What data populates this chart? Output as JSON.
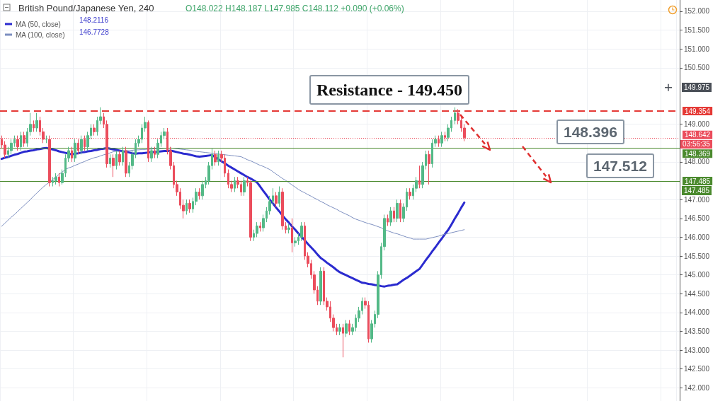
{
  "chart_data": {
    "type": "candlestick",
    "title": "British Pound/Japanese Yen, 240",
    "subtitle": "O148.022 H148.187 L147.985 C148.112 +0.090 (+0.06%)",
    "categories": [
      null,
      null,
      null,
      null,
      null,
      null,
      null,
      null,
      null,
      null,
      null,
      null,
      null,
      null,
      null,
      null,
      null,
      null,
      null,
      null,
      null,
      null,
      null,
      null,
      null,
      null,
      null,
      null,
      null,
      null,
      null,
      null,
      null,
      null,
      null,
      null,
      null,
      null,
      null,
      null,
      null,
      null,
      null,
      null,
      null,
      null,
      null,
      null,
      null,
      null,
      null,
      null,
      null,
      null,
      null,
      null,
      null,
      null,
      null,
      null,
      null,
      null,
      null,
      null,
      null,
      null,
      null,
      null,
      null,
      null,
      null,
      null,
      null,
      null,
      null,
      null,
      null,
      null,
      null,
      null,
      null,
      null,
      null,
      null,
      null,
      null,
      null,
      null,
      null,
      null,
      null,
      null,
      null,
      null,
      null,
      null,
      null,
      null,
      null,
      null,
      null,
      null,
      null,
      null,
      null,
      null,
      null,
      null,
      null,
      null,
      null,
      null,
      null,
      null,
      null,
      null,
      null,
      null,
      null,
      null,
      null,
      null,
      null,
      null,
      null,
      null,
      null,
      null,
      null,
      null,
      null,
      null,
      null,
      null,
      null,
      null,
      null,
      null,
      null,
      null,
      null,
      null,
      null,
      null,
      null,
      null,
      null,
      null,
      null,
      null,
      null,
      null,
      null,
      null,
      null,
      null,
      null,
      null,
      null,
      null,
      null,
      null,
      null,
      null,
      null,
      null,
      null,
      null,
      null,
      null,
      null,
      null,
      null,
      null,
      null,
      null,
      null,
      null,
      null,
      null,
      null,
      null,
      null,
      null,
      null,
      null,
      null,
      null,
      null,
      null,
      null,
      null,
      null,
      null,
      null,
      null,
      null,
      null,
      null,
      null,
      null,
      null,
      null,
      null,
      null,
      null,
      null,
      null,
      null,
      null,
      null,
      null,
      null
    ],
    "ohlc": [
      [
        148.6,
        148.7,
        148.35,
        148.45
      ],
      [
        148.45,
        148.55,
        148.1,
        148.2
      ],
      [
        148.2,
        148.4,
        148.1,
        148.3
      ],
      [
        148.3,
        148.6,
        148.2,
        148.5
      ],
      [
        148.5,
        148.7,
        148.4,
        148.6
      ],
      [
        148.6,
        148.7,
        148.3,
        148.4
      ],
      [
        148.4,
        148.8,
        148.3,
        148.7
      ],
      [
        148.7,
        148.8,
        148.4,
        148.5
      ],
      [
        148.5,
        148.9,
        148.4,
        148.8
      ],
      [
        148.8,
        149.3,
        148.7,
        149.0
      ],
      [
        149.0,
        149.1,
        148.8,
        148.9
      ],
      [
        148.9,
        149.3,
        148.8,
        149.1
      ],
      [
        149.1,
        149.2,
        148.7,
        148.8
      ],
      [
        148.8,
        148.9,
        148.5,
        148.6
      ],
      [
        148.6,
        148.7,
        148.5,
        148.6
      ],
      [
        148.6,
        148.7,
        147.35,
        147.45
      ],
      [
        147.45,
        147.6,
        147.35,
        147.5
      ],
      [
        147.5,
        147.7,
        147.4,
        147.6
      ],
      [
        147.6,
        147.7,
        147.35,
        147.45
      ],
      [
        147.45,
        147.8,
        147.4,
        147.7
      ],
      [
        147.7,
        148.2,
        147.6,
        148.1
      ],
      [
        148.1,
        148.4,
        148.0,
        148.3
      ],
      [
        148.3,
        148.4,
        148.0,
        148.1
      ],
      [
        148.1,
        148.6,
        148.0,
        148.5
      ],
      [
        148.5,
        148.6,
        148.2,
        148.3
      ],
      [
        148.3,
        148.7,
        148.2,
        148.6
      ],
      [
        148.6,
        148.7,
        148.3,
        148.4
      ],
      [
        148.4,
        148.8,
        148.3,
        148.7
      ],
      [
        148.7,
        149.0,
        148.6,
        148.9
      ],
      [
        148.9,
        149.0,
        148.7,
        148.8
      ],
      [
        148.8,
        149.2,
        148.7,
        149.1
      ],
      [
        149.1,
        149.45,
        149.0,
        149.2
      ],
      [
        149.2,
        149.3,
        148.9,
        149.0
      ],
      [
        149.0,
        149.1,
        147.85,
        147.95
      ],
      [
        147.95,
        148.2,
        147.85,
        148.1
      ],
      [
        148.1,
        148.2,
        147.6,
        147.9
      ],
      [
        147.9,
        148.3,
        147.8,
        148.2
      ],
      [
        148.2,
        148.3,
        147.9,
        148.0
      ],
      [
        148.0,
        148.4,
        147.9,
        148.3
      ],
      [
        148.3,
        148.4,
        147.6,
        147.7
      ],
      [
        147.7,
        148.0,
        147.6,
        147.9
      ],
      [
        147.9,
        148.3,
        147.8,
        148.2
      ],
      [
        148.2,
        148.6,
        148.1,
        148.5
      ],
      [
        148.5,
        148.7,
        148.4,
        148.6
      ],
      [
        148.6,
        149.0,
        148.5,
        148.9
      ],
      [
        148.9,
        149.2,
        148.8,
        149.05
      ],
      [
        149.05,
        149.1,
        148.0,
        148.1
      ],
      [
        148.1,
        148.4,
        148.0,
        148.3
      ],
      [
        148.3,
        148.4,
        148.1,
        148.2
      ],
      [
        148.2,
        148.6,
        148.1,
        148.5
      ],
      [
        148.5,
        148.8,
        148.4,
        148.7
      ],
      [
        148.7,
        148.9,
        148.6,
        148.8
      ],
      [
        148.8,
        148.9,
        148.2,
        148.3
      ],
      [
        148.3,
        148.4,
        147.8,
        147.9
      ],
      [
        147.9,
        148.0,
        147.3,
        147.4
      ],
      [
        147.4,
        147.5,
        147.1,
        147.2
      ],
      [
        147.2,
        147.3,
        146.75,
        146.85
      ],
      [
        146.85,
        147.0,
        146.5,
        146.7
      ],
      [
        146.7,
        147.0,
        146.6,
        146.9
      ],
      [
        146.9,
        147.0,
        146.65,
        146.75
      ],
      [
        146.75,
        147.05,
        146.65,
        146.95
      ],
      [
        146.95,
        147.3,
        146.85,
        147.2
      ],
      [
        147.2,
        147.3,
        147.0,
        147.1
      ],
      [
        147.1,
        147.5,
        147.0,
        147.4
      ],
      [
        147.4,
        147.6,
        147.3,
        147.5
      ],
      [
        147.5,
        148.0,
        147.4,
        147.9
      ],
      [
        147.9,
        148.35,
        147.8,
        148.2
      ],
      [
        148.2,
        148.3,
        147.9,
        148.0
      ],
      [
        148.0,
        148.3,
        147.9,
        148.2
      ],
      [
        148.2,
        148.3,
        148.0,
        148.1
      ],
      [
        148.1,
        148.2,
        147.6,
        147.7
      ],
      [
        147.7,
        147.8,
        147.3,
        147.4
      ],
      [
        147.4,
        147.5,
        147.2,
        147.3
      ],
      [
        147.3,
        147.6,
        147.2,
        147.5
      ],
      [
        147.5,
        147.6,
        147.3,
        147.4
      ],
      [
        147.4,
        147.5,
        147.1,
        147.2
      ],
      [
        147.2,
        147.6,
        147.1,
        147.5
      ],
      [
        147.5,
        147.6,
        147.35,
        147.45
      ],
      [
        147.45,
        147.5,
        145.9,
        146.0
      ],
      [
        146.0,
        146.2,
        145.9,
        146.1
      ],
      [
        146.1,
        146.4,
        146.0,
        146.3
      ],
      [
        146.3,
        146.4,
        146.15,
        146.25
      ],
      [
        146.25,
        146.6,
        146.15,
        146.5
      ],
      [
        146.5,
        146.8,
        146.4,
        146.7
      ],
      [
        146.7,
        147.1,
        146.6,
        146.95
      ],
      [
        146.95,
        147.3,
        146.85,
        147.1
      ],
      [
        147.1,
        147.2,
        146.8,
        146.9
      ],
      [
        146.9,
        147.35,
        146.8,
        147.2
      ],
      [
        147.2,
        147.3,
        146.2,
        146.3
      ],
      [
        146.3,
        146.4,
        146.1,
        146.2
      ],
      [
        146.2,
        146.35,
        146.1,
        146.25
      ],
      [
        146.25,
        146.5,
        145.6,
        145.85
      ],
      [
        145.85,
        146.0,
        145.75,
        145.9
      ],
      [
        145.9,
        146.1,
        145.8,
        146.0
      ],
      [
        146.0,
        146.4,
        145.9,
        146.3
      ],
      [
        146.3,
        146.4,
        145.4,
        145.5
      ],
      [
        145.5,
        145.6,
        145.2,
        145.3
      ],
      [
        145.3,
        145.4,
        144.9,
        145.0
      ],
      [
        145.0,
        145.1,
        144.5,
        144.6
      ],
      [
        144.6,
        144.7,
        144.2,
        144.3
      ],
      [
        144.3,
        145.2,
        144.2,
        145.1
      ],
      [
        145.1,
        145.2,
        144.2,
        144.3
      ],
      [
        144.3,
        144.4,
        144.05,
        144.15
      ],
      [
        144.15,
        144.3,
        143.75,
        143.85
      ],
      [
        143.85,
        143.95,
        143.5,
        143.6
      ],
      [
        143.6,
        143.7,
        143.4,
        143.5
      ],
      [
        143.5,
        143.7,
        143.4,
        143.6
      ],
      [
        143.6,
        143.7,
        142.81,
        143.45
      ],
      [
        143.45,
        143.8,
        143.35,
        143.7
      ],
      [
        143.7,
        143.8,
        143.4,
        143.5
      ],
      [
        143.5,
        143.7,
        143.4,
        143.6
      ],
      [
        143.6,
        143.95,
        143.5,
        143.85
      ],
      [
        143.85,
        144.15,
        143.75,
        144.05
      ],
      [
        144.05,
        144.4,
        143.95,
        144.3
      ],
      [
        144.3,
        144.4,
        144.1,
        144.2
      ],
      [
        144.2,
        144.3,
        143.2,
        143.3
      ],
      [
        143.3,
        143.8,
        143.2,
        143.7
      ],
      [
        143.7,
        144.05,
        143.6,
        143.95
      ],
      [
        143.95,
        145.1,
        143.85,
        145.0
      ],
      [
        145.0,
        145.85,
        144.9,
        145.75
      ],
      [
        145.75,
        146.6,
        145.65,
        146.5
      ],
      [
        146.5,
        146.6,
        146.3,
        146.4
      ],
      [
        146.4,
        146.8,
        146.3,
        146.7
      ],
      [
        146.7,
        146.8,
        146.4,
        146.5
      ],
      [
        146.5,
        147.0,
        146.4,
        146.9
      ],
      [
        146.9,
        147.0,
        146.4,
        146.5
      ],
      [
        146.5,
        146.9,
        146.4,
        146.8
      ],
      [
        146.8,
        147.3,
        146.7,
        147.2
      ],
      [
        147.2,
        147.3,
        147.0,
        147.1
      ],
      [
        147.1,
        147.4,
        147.0,
        147.3
      ],
      [
        147.3,
        147.6,
        147.2,
        147.5
      ],
      [
        147.5,
        147.9,
        147.3,
        147.4
      ],
      [
        147.4,
        148.0,
        147.3,
        147.9
      ],
      [
        147.9,
        148.3,
        147.8,
        148.2
      ],
      [
        148.2,
        148.3,
        147.4,
        147.95
      ],
      [
        147.95,
        148.6,
        147.85,
        148.5
      ],
      [
        148.5,
        148.7,
        148.4,
        148.6
      ],
      [
        148.6,
        148.7,
        148.4,
        148.5
      ],
      [
        148.5,
        148.8,
        148.4,
        148.7
      ],
      [
        148.7,
        148.8,
        148.55,
        148.65
      ],
      [
        148.65,
        149.0,
        148.55,
        148.9
      ],
      [
        148.9,
        149.2,
        148.8,
        149.1
      ],
      [
        149.1,
        149.45,
        149.0,
        149.3
      ],
      [
        149.3,
        149.4,
        149.0,
        149.1
      ],
      [
        149.1,
        149.2,
        148.8,
        148.9
      ],
      [
        148.9,
        149.0,
        148.55,
        148.642
      ],
      null,
      null,
      null,
      null,
      null,
      null,
      null,
      null,
      null,
      null,
      null,
      null,
      null,
      null,
      null,
      null,
      null,
      null,
      null,
      null,
      null,
      null,
      null,
      null,
      null,
      null,
      null,
      null,
      null,
      null,
      null,
      null,
      null,
      null,
      null,
      null,
      null,
      null,
      null,
      null,
      null,
      null,
      null,
      null,
      null,
      null,
      null,
      null,
      null,
      null,
      null,
      null,
      null,
      null,
      null,
      null,
      null,
      null,
      null,
      null,
      null,
      null,
      null,
      null,
      null,
      null,
      null
    ],
    "colors": [
      "#eb4d5c",
      "#eb4d5c",
      "#53b987",
      "#53b987",
      "#53b987",
      "#eb4d5c",
      "#53b987",
      "#eb4d5c",
      "#53b987",
      "#53b987",
      "#eb4d5c",
      "#53b987",
      "#eb4d5c",
      "#eb4d5c",
      "#53b987",
      "#eb4d5c",
      "#53b987",
      "#53b987",
      "#eb4d5c",
      "#53b987",
      "#53b987",
      "#53b987",
      "#eb4d5c",
      "#53b987",
      "#eb4d5c",
      "#53b987",
      "#eb4d5c",
      "#53b987",
      "#53b987",
      "#eb4d5c",
      "#53b987",
      "#53b987",
      "#eb4d5c",
      "#eb4d5c",
      "#53b987",
      "#eb4d5c",
      "#53b987",
      "#eb4d5c",
      "#53b987",
      "#eb4d5c",
      "#53b987",
      "#53b987",
      "#53b987",
      "#53b987",
      "#53b987",
      "#53b987",
      "#eb4d5c",
      "#53b987",
      "#eb4d5c",
      "#53b987",
      "#53b987",
      "#53b987",
      "#eb4d5c",
      "#eb4d5c",
      "#eb4d5c",
      "#eb4d5c",
      "#eb4d5c",
      "#eb4d5c",
      "#53b987",
      "#eb4d5c",
      "#53b987",
      "#53b987",
      "#eb4d5c",
      "#53b987",
      "#53b987",
      "#53b987",
      "#53b987",
      "#eb4d5c",
      "#53b987",
      "#eb4d5c",
      "#eb4d5c",
      "#eb4d5c",
      "#eb4d5c",
      "#53b987",
      "#eb4d5c",
      "#eb4d5c",
      "#53b987",
      "#eb4d5c",
      "#eb4d5c",
      "#53b987",
      "#53b987",
      "#eb4d5c",
      "#53b987",
      "#53b987",
      "#53b987",
      "#53b987",
      "#eb4d5c",
      "#53b987",
      "#eb4d5c",
      "#eb4d5c",
      "#53b987",
      "#eb4d5c",
      "#53b987",
      "#53b987",
      "#53b987",
      "#eb4d5c",
      "#eb4d5c",
      "#eb4d5c",
      "#eb4d5c",
      "#eb4d5c",
      "#53b987",
      "#eb4d5c",
      "#eb4d5c",
      "#eb4d5c",
      "#eb4d5c",
      "#eb4d5c",
      "#53b987",
      "#eb4d5c",
      "#53b987",
      "#eb4d5c",
      "#53b987",
      "#53b987",
      "#53b987",
      "#53b987",
      "#eb4d5c",
      "#eb4d5c",
      "#53b987",
      "#53b987",
      "#53b987",
      "#53b987",
      "#53b987",
      "#eb4d5c",
      "#53b987",
      "#eb4d5c",
      "#53b987",
      "#eb4d5c",
      "#53b987",
      "#53b987",
      "#eb4d5c",
      "#53b987",
      "#53b987",
      "#eb4d5c",
      "#53b987",
      "#53b987",
      "#eb4d5c",
      "#53b987",
      "#53b987",
      "#eb4d5c",
      "#53b987",
      "#eb4d5c",
      "#53b987",
      "#53b987",
      "#53b987",
      "#eb4d5c",
      "#eb4d5c",
      "#eb4d5c",
      null,
      null,
      null,
      null,
      null,
      null,
      null,
      null,
      null,
      null,
      null,
      null,
      null,
      null,
      null,
      null,
      null,
      null,
      null,
      null,
      null,
      null,
      null,
      null,
      null,
      null,
      null,
      null,
      null,
      null,
      null,
      null,
      null,
      null,
      null,
      null,
      null,
      null,
      null,
      null,
      null,
      null,
      null,
      null,
      null,
      null,
      null,
      null,
      null,
      null,
      null,
      null,
      null,
      null,
      null,
      null,
      null,
      null,
      null,
      null,
      null,
      null,
      null,
      null,
      null,
      null,
      null
    ],
    "series": [
      {
        "name": "MA (50, close)",
        "type": "line",
        "color": "#2b2bcf",
        "values": [
          148.08,
          148.11,
          148.13,
          148.16,
          148.19,
          148.21,
          148.24,
          148.27,
          148.28,
          148.3,
          148.31,
          148.33,
          148.34,
          148.36,
          148.37,
          148.35,
          148.33,
          148.31,
          148.28,
          148.26,
          148.24,
          148.22,
          148.2,
          148.22,
          148.23,
          148.25,
          148.26,
          148.28,
          148.29,
          148.31,
          148.32,
          148.34,
          148.35,
          148.37,
          148.35,
          148.33,
          148.32,
          148.3,
          148.28,
          148.27,
          148.25,
          148.23,
          148.22,
          148.23,
          148.23,
          148.24,
          148.25,
          148.26,
          148.26,
          148.27,
          148.28,
          148.29,
          148.29,
          148.3,
          148.28,
          148.26,
          148.24,
          148.22,
          148.21,
          148.19,
          148.17,
          148.15,
          148.14,
          148.15,
          148.16,
          148.17,
          148.18,
          148.12,
          148.07,
          148.01,
          147.96,
          147.9,
          147.85,
          147.8,
          147.75,
          147.7,
          147.65,
          147.6,
          147.56,
          147.51,
          147.46,
          147.35,
          147.23,
          147.12,
          147.0,
          146.9,
          146.79,
          146.69,
          146.58,
          146.48,
          146.39,
          146.29,
          146.2,
          146.1,
          146.01,
          145.92,
          145.82,
          145.73,
          145.64,
          145.54,
          145.45,
          145.39,
          145.32,
          145.26,
          145.2,
          145.13,
          145.07,
          145.03,
          144.99,
          144.95,
          144.91,
          144.87,
          144.83,
          144.79,
          144.78,
          144.76,
          144.75,
          144.73,
          144.72,
          144.7,
          144.69,
          144.71,
          144.72,
          144.74,
          144.75,
          144.81,
          144.87,
          144.92,
          144.98,
          145.04,
          145.1,
          145.16,
          145.28,
          145.4,
          145.51,
          145.63,
          145.74,
          145.86,
          145.97,
          146.09,
          146.2,
          146.34,
          146.49,
          146.63,
          146.78,
          146.92,
          null,
          null,
          null,
          null,
          null,
          null,
          null,
          null,
          null,
          null,
          null,
          null,
          null,
          null,
          null,
          null,
          null,
          null,
          null,
          null,
          null,
          null,
          null,
          null,
          null,
          null,
          null,
          null,
          null,
          null,
          null,
          null,
          null,
          null,
          null,
          null,
          null,
          null,
          null,
          null,
          null,
          null,
          null,
          null,
          null,
          null,
          null,
          null,
          null,
          null,
          null,
          null,
          null,
          null,
          null,
          null,
          null,
          null,
          null,
          null,
          null,
          null,
          null,
          null,
          null,
          null,
          null
        ]
      },
      {
        "name": "MA (100, close)",
        "type": "line",
        "color": "#7d8fc0",
        "values": [
          146.29,
          146.37,
          146.45,
          146.53,
          146.6,
          146.68,
          146.76,
          146.84,
          146.92,
          147.0,
          147.09,
          147.17,
          147.25,
          147.33,
          147.4,
          147.46,
          147.53,
          147.6,
          147.67,
          147.73,
          147.8,
          147.84,
          147.87,
          147.91,
          147.94,
          147.98,
          148.01,
          148.05,
          148.08,
          148.11,
          148.13,
          148.16,
          148.19,
          148.21,
          148.24,
          148.27,
          148.28,
          148.28,
          148.29,
          148.3,
          148.3,
          148.31,
          148.32,
          148.32,
          148.33,
          148.33,
          148.34,
          148.34,
          148.35,
          148.35,
          148.35,
          148.36,
          148.36,
          148.37,
          148.36,
          148.35,
          148.34,
          148.33,
          148.32,
          148.31,
          148.29,
          148.28,
          148.27,
          148.26,
          148.25,
          148.24,
          148.23,
          148.22,
          148.21,
          148.2,
          148.19,
          148.18,
          148.17,
          148.16,
          148.15,
          148.14,
          148.1,
          148.06,
          148.03,
          147.99,
          147.95,
          147.91,
          147.88,
          147.84,
          147.8,
          147.74,
          147.68,
          147.62,
          147.56,
          147.51,
          147.45,
          147.39,
          147.33,
          147.27,
          147.22,
          147.18,
          147.13,
          147.09,
          147.04,
          147.0,
          146.95,
          146.91,
          146.86,
          146.82,
          146.78,
          146.74,
          146.69,
          146.65,
          146.61,
          146.57,
          146.52,
          146.48,
          146.45,
          146.42,
          146.39,
          146.36,
          146.34,
          146.31,
          146.28,
          146.25,
          146.2,
          146.17,
          146.14,
          146.11,
          146.09,
          146.06,
          146.03,
          146.0,
          145.98,
          145.95,
          145.95,
          145.95,
          145.95,
          145.95,
          145.97,
          145.99,
          146.01,
          146.03,
          146.06,
          146.08,
          146.1,
          146.12,
          146.14,
          146.16,
          146.18,
          146.2,
          null,
          null,
          null,
          null,
          null,
          null,
          null,
          null,
          null,
          null,
          null,
          null,
          null,
          null,
          null,
          null,
          null,
          null,
          null,
          null,
          null,
          null,
          null,
          null,
          null,
          null,
          null,
          null,
          null,
          null,
          null,
          null,
          null,
          null,
          null,
          null,
          null,
          null,
          null,
          null,
          null,
          null,
          null,
          null,
          null,
          null,
          null,
          null,
          null,
          null,
          null,
          null,
          null,
          null,
          null,
          null,
          null,
          null,
          null,
          null,
          null,
          null,
          null,
          null,
          null,
          null,
          null
        ]
      }
    ],
    "ylim": [
      141.65,
      152.3
    ],
    "yticks": [
      {
        "value": 142,
        "label": "142.000"
      },
      {
        "value": 142.5,
        "label": "142.500"
      },
      {
        "value": 143,
        "label": "143.000"
      },
      {
        "value": 143.5,
        "label": "143.500"
      },
      {
        "value": 144,
        "label": "144.000"
      },
      {
        "value": 144.5,
        "label": "144.500"
      },
      {
        "value": 145,
        "label": "145.000"
      },
      {
        "value": 145.5,
        "label": "145.500"
      },
      {
        "value": 146,
        "label": "146.000"
      },
      {
        "value": 146.5,
        "label": "146.500"
      },
      {
        "value": 147,
        "label": "147.000"
      },
      {
        "value": 148,
        "label": "148.000"
      },
      {
        "value": 149,
        "label": "149.000"
      },
      {
        "value": 150.5,
        "label": "150.500"
      },
      {
        "value": 151,
        "label": "151.000"
      },
      {
        "value": 151.5,
        "label": "151.500"
      },
      {
        "value": 152,
        "label": "152.000"
      }
    ],
    "ref_lines": [
      {
        "axis": "y",
        "value": 149.354,
        "label": "149.354",
        "color": "#e53935",
        "line_style": "dashed"
      },
      {
        "axis": "y",
        "value": 148.642,
        "label": "148.642",
        "color": "#eb4d5c",
        "line_style": "dotted"
      },
      {
        "axis": "y",
        "value": 148.369,
        "label": "148.369",
        "color": "#4b8a2e",
        "line_style": "solid"
      },
      {
        "axis": "y",
        "value": 147.485,
        "label": "147.485",
        "color": "#4b8a2e",
        "line_style": "solid"
      }
    ],
    "annotations": [
      "Resistance - 149.450",
      "148.396",
      "147.512",
      {
        "text": "149.975",
        "y": 149.975
      },
      "03:56:35",
      "148.2116",
      "146.7728",
      "147.485"
    ],
    "grid": true,
    "legend": "top left",
    "line_style": "solid"
  }
}
